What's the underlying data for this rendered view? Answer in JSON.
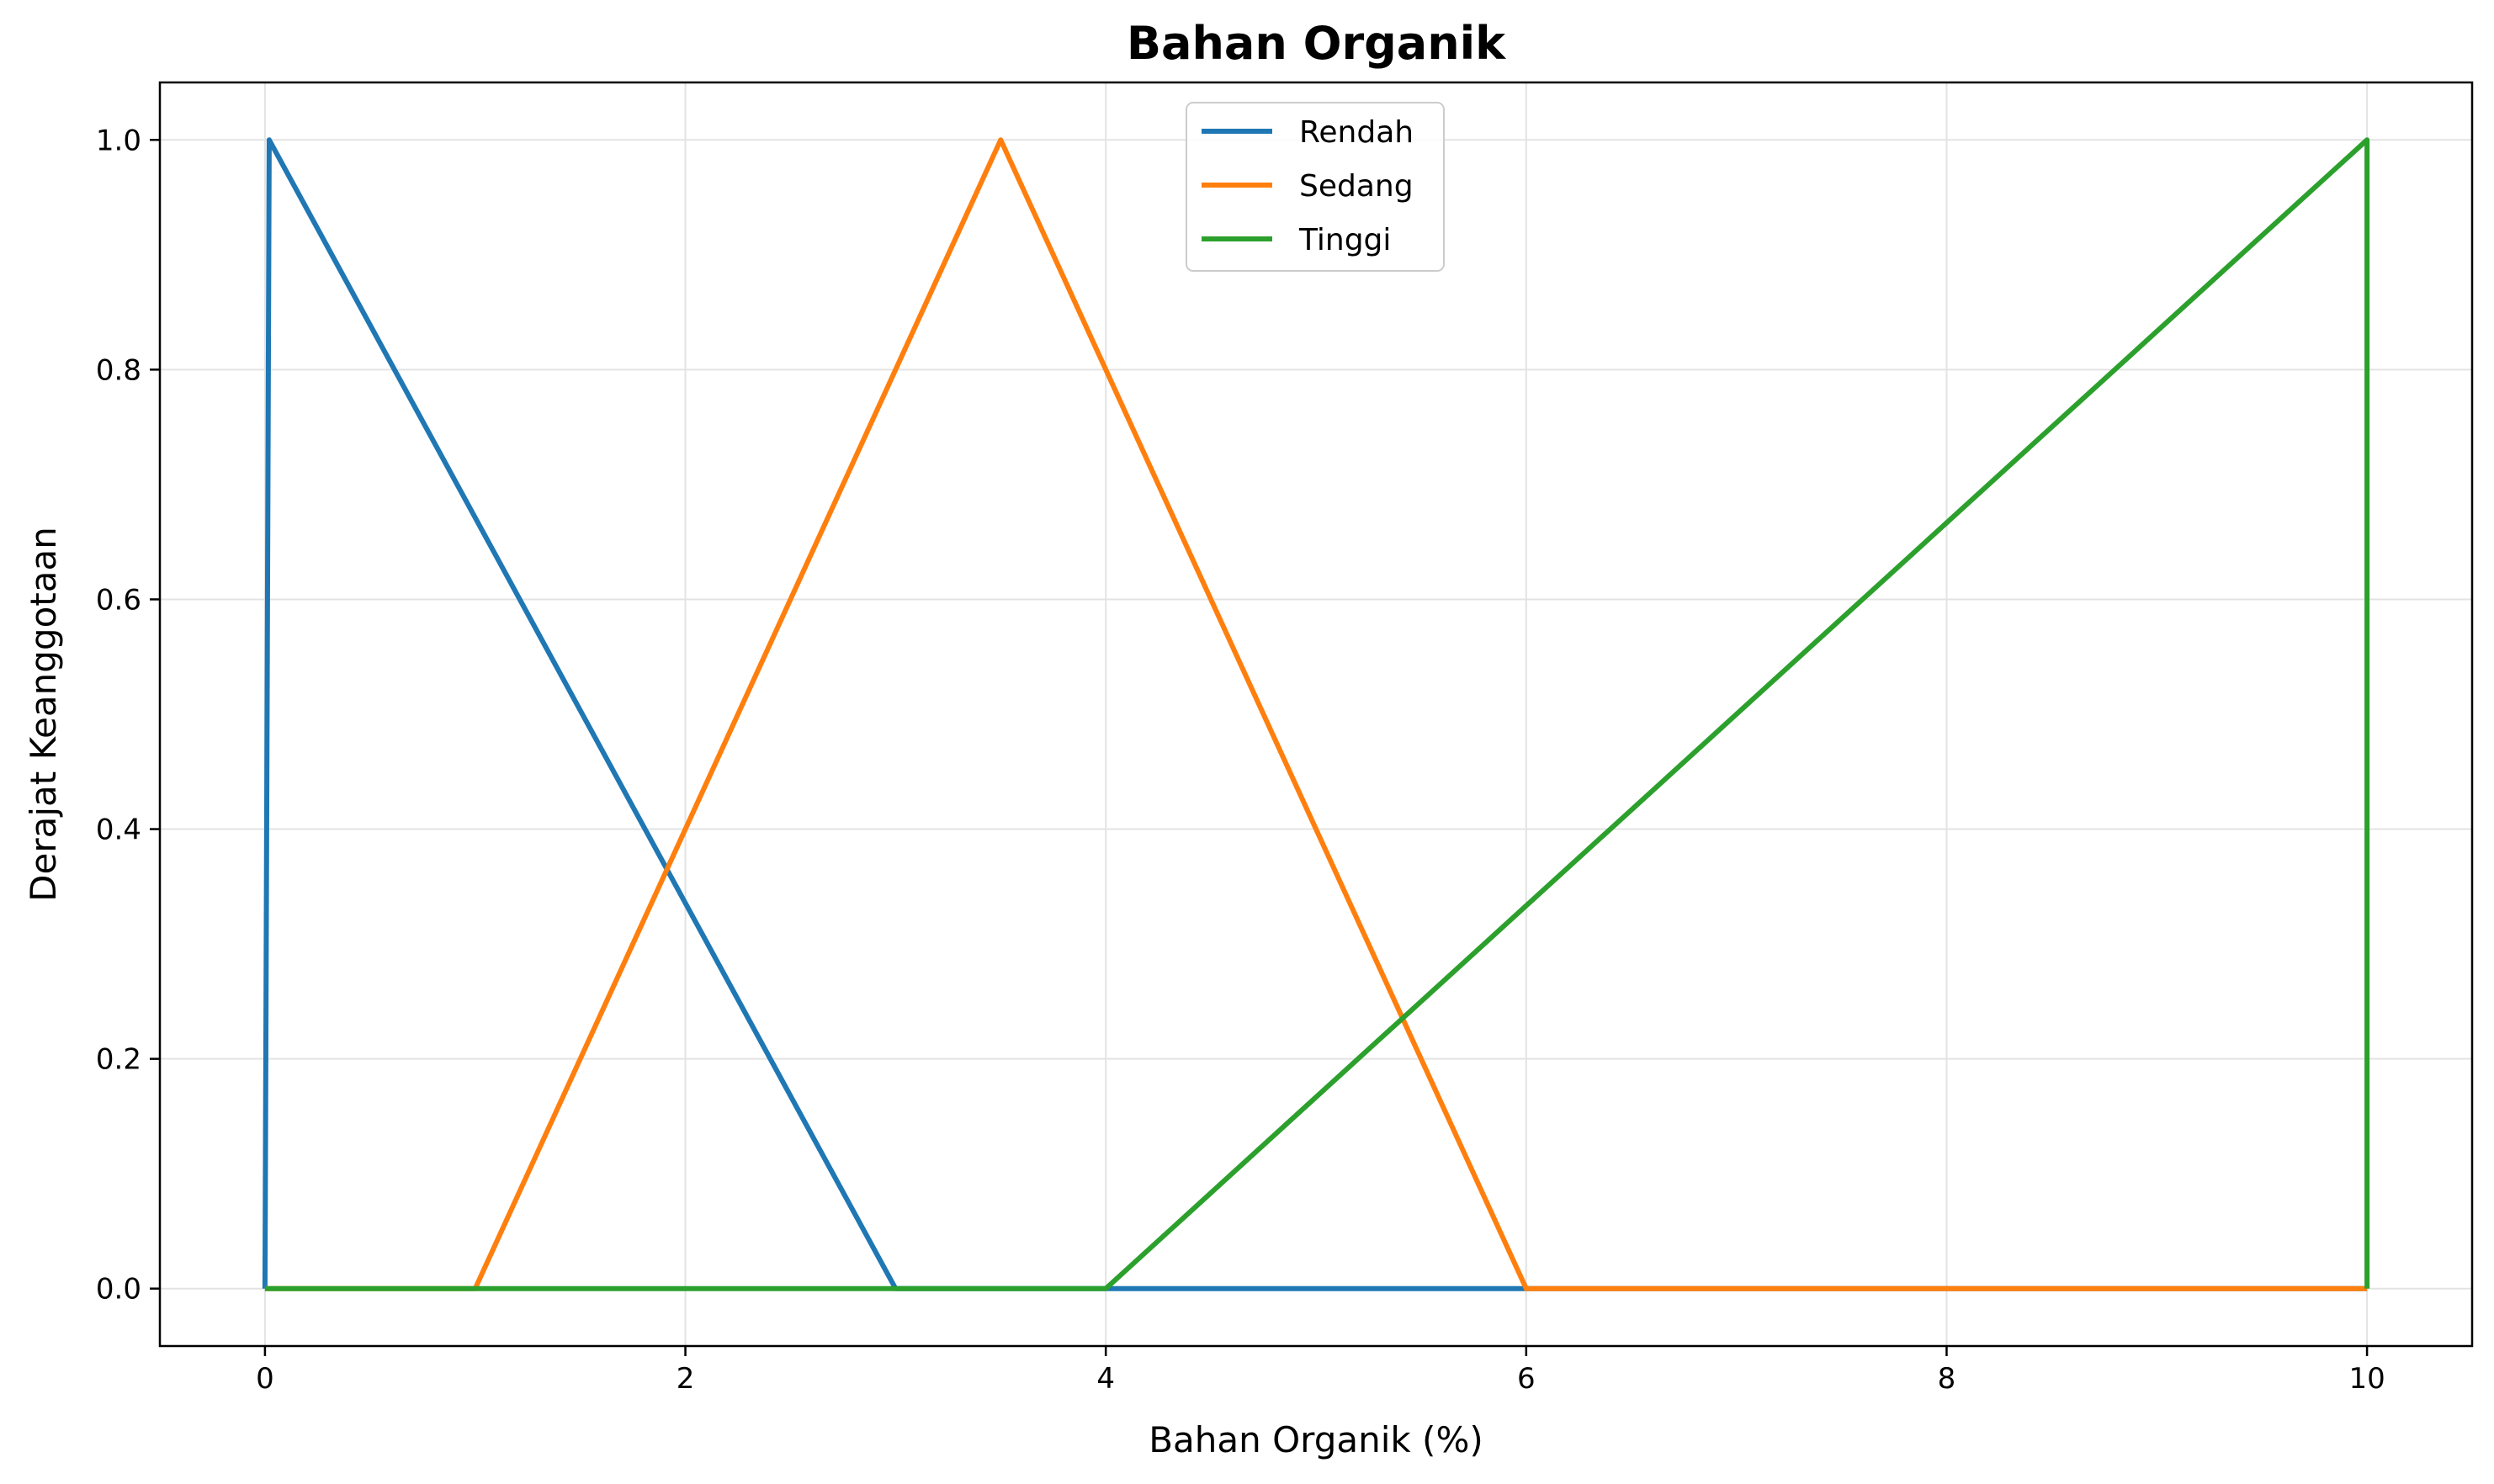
{
  "chart_data": {
    "type": "line",
    "title": "Bahan Organik",
    "xlabel": "Bahan Organik (%)",
    "ylabel": "Derajat Keanggotaan",
    "xlim": [
      -0.5,
      10.5
    ],
    "ylim": [
      -0.05,
      1.05
    ],
    "xticks": [
      0,
      2,
      4,
      6,
      8,
      10
    ],
    "xtick_labels": [
      "0",
      "2",
      "4",
      "6",
      "8",
      "10"
    ],
    "yticks": [
      0.0,
      0.2,
      0.4,
      0.6,
      0.8,
      1.0
    ],
    "ytick_labels": [
      "0.0",
      "0.2",
      "0.4",
      "0.6",
      "0.8",
      "1.0"
    ],
    "grid": true,
    "legend_position": "top-center",
    "series": [
      {
        "name": "Rendah",
        "color": "#1f77b4",
        "x": [
          0,
          0.02,
          3,
          10
        ],
        "y": [
          0,
          1,
          0,
          0
        ]
      },
      {
        "name": "Sedang",
        "color": "#ff7f0e",
        "x": [
          0,
          1,
          3.5,
          6,
          10
        ],
        "y": [
          0,
          0,
          1,
          0,
          0
        ]
      },
      {
        "name": "Tinggi",
        "color": "#2ca02c",
        "x": [
          0,
          4,
          10,
          10
        ],
        "y": [
          0,
          0,
          1,
          0
        ]
      }
    ]
  }
}
